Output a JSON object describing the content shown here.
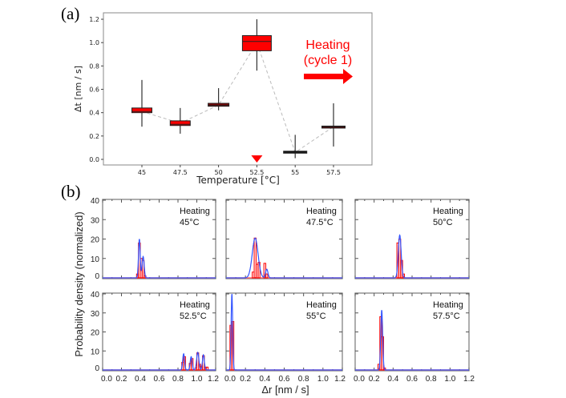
{
  "chart_data": [
    {
      "type": "box",
      "panel_label": "(a)",
      "xlabel": "Temperature [°C]",
      "ylabel": "Δt [nm / s]",
      "ylim": [
        0,
        1.25
      ],
      "yticks": [
        "0.0",
        "0.2",
        "0.4",
        "0.6",
        "0.8",
        "1.0",
        "1.2"
      ],
      "ytick_values": [
        0,
        0.2,
        0.4,
        0.6,
        0.8,
        1.0,
        1.2
      ],
      "categories": [
        "45",
        "47.5",
        "50",
        "52.5",
        "55",
        "57.5"
      ],
      "boxes": [
        {
          "category": "45",
          "q1": 0.4,
          "median": 0.41,
          "q3": 0.44,
          "whisker_low": 0.28,
          "whisker_high": 0.68,
          "color": "#ff0000"
        },
        {
          "category": "47.5",
          "q1": 0.29,
          "median": 0.3,
          "q3": 0.33,
          "whisker_low": 0.22,
          "whisker_high": 0.44,
          "color": "#ff0000"
        },
        {
          "category": "50",
          "q1": 0.455,
          "median": 0.465,
          "q3": 0.48,
          "whisker_low": 0.42,
          "whisker_high": 0.61,
          "color": "#8b0000"
        },
        {
          "category": "52.5",
          "q1": 0.93,
          "median": 1.01,
          "q3": 1.06,
          "whisker_low": 0.76,
          "whisker_high": 1.2,
          "color": "#ff0000"
        },
        {
          "category": "55",
          "q1": 0.055,
          "median": 0.06,
          "q3": 0.07,
          "whisker_low": 0.01,
          "whisker_high": 0.21,
          "color": "#000000"
        },
        {
          "category": "57.5",
          "q1": 0.27,
          "median": 0.28,
          "q3": 0.285,
          "whisker_low": 0.11,
          "whisker_high": 0.48,
          "color": "#5a0000"
        }
      ],
      "mean_line": [
        0.41,
        0.31,
        0.465,
        1.0,
        0.06,
        0.28
      ],
      "marker": {
        "category": "52.5",
        "shape": "down-triangle",
        "color": "#ff0000"
      },
      "annotation": {
        "line1": "Heating",
        "line2": "(cycle 1)",
        "color": "#ff0000",
        "arrow": "right-arrow"
      }
    },
    {
      "type": "histogram",
      "panel_label": "(b)",
      "xlabel": "Δr [nm / s]",
      "ylabel": "Probability density (normalized)",
      "xlim": [
        0,
        1.2
      ],
      "ylim": [
        0,
        40
      ],
      "xticks": [
        "0.0",
        "0.2",
        "0.4",
        "0.6",
        "0.8",
        "1.0",
        "1.2"
      ],
      "xtick_values": [
        0,
        0.2,
        0.4,
        0.6,
        0.8,
        1.0,
        1.2
      ],
      "yticks": [
        "0",
        "10",
        "20",
        "30",
        "40"
      ],
      "ytick_values": [
        0,
        10,
        20,
        30,
        40
      ],
      "bin_width": 0.02,
      "hist_color": "#ff0000",
      "kde_color": "#3355ff",
      "panels": [
        {
          "title": "Heating",
          "temp": "45°C",
          "kde": [
            {
              "mu": 0.39,
              "sigma": 0.009,
              "h": 20
            },
            {
              "mu": 0.43,
              "sigma": 0.011,
              "h": 11
            }
          ],
          "bars": [
            [
              0.37,
              2
            ],
            [
              0.39,
              18
            ],
            [
              0.41,
              10
            ],
            [
              0.43,
              9
            ],
            [
              0.45,
              1
            ]
          ]
        },
        {
          "title": "Heating",
          "temp": "47.5°C",
          "kde": [
            {
              "mu": 0.3,
              "sigma": 0.03,
              "h": 20.5
            },
            {
              "mu": 0.42,
              "sigma": 0.012,
              "h": 4.5
            }
          ],
          "bars": [
            [
              0.28,
              3
            ],
            [
              0.3,
              20.5
            ],
            [
              0.32,
              7
            ],
            [
              0.34,
              8
            ],
            [
              0.4,
              7.5
            ],
            [
              0.42,
              2
            ]
          ]
        },
        {
          "title": "Heating",
          "temp": "50°C",
          "kde": [
            {
              "mu": 0.47,
              "sigma": 0.015,
              "h": 22
            }
          ],
          "bars": [
            [
              0.45,
              18
            ],
            [
              0.47,
              20
            ],
            [
              0.49,
              9
            ],
            [
              0.51,
              2
            ]
          ]
        },
        {
          "title": "Heating",
          "temp": "52.5°C",
          "kde": [
            {
              "mu": 0.86,
              "sigma": 0.01,
              "h": 8.5
            },
            {
              "mu": 0.94,
              "sigma": 0.01,
              "h": 7
            },
            {
              "mu": 1.01,
              "sigma": 0.012,
              "h": 9.3
            },
            {
              "mu": 1.07,
              "sigma": 0.01,
              "h": 8
            }
          ],
          "bars": [
            [
              0.85,
              4
            ],
            [
              0.87,
              7
            ],
            [
              0.93,
              3.5
            ],
            [
              0.95,
              6
            ],
            [
              0.99,
              1
            ],
            [
              1.01,
              9
            ],
            [
              1.03,
              3
            ],
            [
              1.05,
              2
            ],
            [
              1.07,
              7.5
            ],
            [
              1.09,
              1.5
            ],
            [
              1.11,
              1.5
            ]
          ]
        },
        {
          "title": "Heating",
          "temp": "55°C",
          "kde": [
            {
              "mu": 0.06,
              "sigma": 0.008,
              "h": 40
            }
          ],
          "bars": [
            [
              0.05,
              23.5
            ],
            [
              0.07,
              25.5
            ]
          ]
        },
        {
          "title": "Heating",
          "temp": "57.5°C",
          "kde": [
            {
              "mu": 0.28,
              "sigma": 0.01,
              "h": 31.5
            }
          ],
          "bars": [
            [
              0.25,
              3
            ],
            [
              0.27,
              28
            ],
            [
              0.29,
              17.5
            ],
            [
              0.31,
              1
            ]
          ]
        }
      ]
    }
  ]
}
